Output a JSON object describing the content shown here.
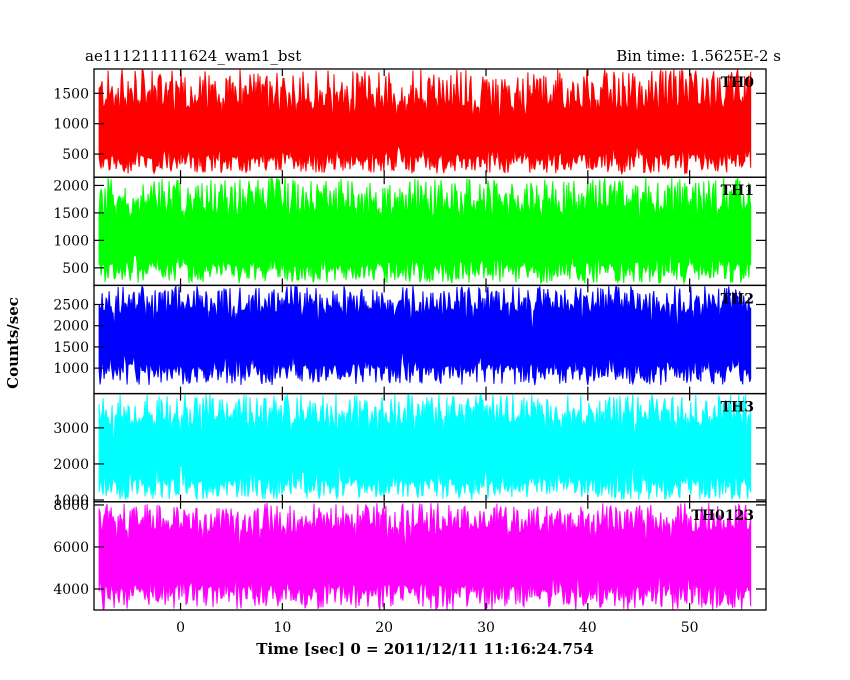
{
  "chart_data": {
    "type": "line",
    "title": "ae111211111624_wam1_bst",
    "bin_time_label": "Bin time: 1.5625E-2 s",
    "xlabel": "Time [sec] 0 = 2011/12/11 11:16:24.754",
    "ylabel": "Counts/sec",
    "xlim": [
      -8.5,
      57.5
    ],
    "x_data_range": [
      -8,
      56
    ],
    "x_ticks": [
      0,
      10,
      20,
      30,
      40,
      50
    ],
    "grid": false,
    "series": [
      {
        "name": "TH0",
        "color": "#ff0000",
        "ylim": [
          120,
          1900
        ],
        "y_ticks": [
          500,
          1000,
          1500
        ],
        "band": {
          "low_min": 180,
          "low_max": 500,
          "high_min": 1250,
          "high_max": 1900,
          "median": 800
        }
      },
      {
        "name": "TH1",
        "color": "#00ff00",
        "ylim": [
          180,
          2150
        ],
        "y_ticks": [
          500,
          1000,
          1500,
          2000
        ],
        "band": {
          "low_min": 220,
          "low_max": 600,
          "high_min": 1500,
          "high_max": 2150,
          "median": 1000
        }
      },
      {
        "name": "TH2",
        "color": "#0000ff",
        "ylim": [
          400,
          2950
        ],
        "y_ticks": [
          1000,
          1500,
          2000,
          2500
        ],
        "band": {
          "low_min": 600,
          "low_max": 1100,
          "high_min": 2300,
          "high_max": 2950,
          "median": 1600
        }
      },
      {
        "name": "TH3",
        "color": "#00ffff",
        "ylim": [
          950,
          3950
        ],
        "y_ticks": [
          1000,
          2000,
          3000
        ],
        "band": {
          "low_min": 1000,
          "low_max": 1600,
          "high_min": 3100,
          "high_max": 3950,
          "median": 2300
        }
      },
      {
        "name": "TH0123",
        "color": "#ff00ff",
        "ylim": [
          3000,
          8150
        ],
        "y_ticks": [
          4000,
          6000,
          8000
        ],
        "band": {
          "low_min": 3000,
          "low_max": 4200,
          "high_min": 6700,
          "high_max": 8100,
          "median": 5400
        }
      }
    ]
  }
}
